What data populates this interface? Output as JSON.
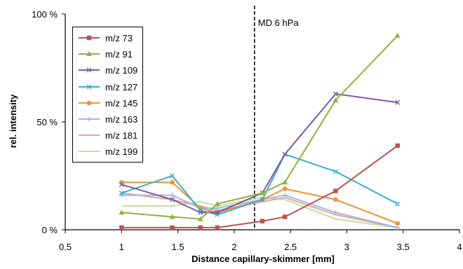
{
  "chart_data": {
    "type": "line",
    "xlabel": "Distance capillary-skimmer [mm]",
    "ylabel": "rel. intensity",
    "xlim": [
      0.5,
      4
    ],
    "ylim": [
      0,
      100
    ],
    "x_ticks": [
      "0.5",
      "1",
      "1.5",
      "2",
      "2.5",
      "3",
      "3.5",
      "4"
    ],
    "y_ticks": [
      "0 %",
      "50 %",
      "100 %"
    ],
    "grid": false,
    "legend_position": "top-left",
    "annotation": {
      "x": 2.18,
      "text": "MD 6 hPa"
    },
    "series": [
      {
        "name": "m/z 73",
        "color": "#c0504d",
        "marker": "square",
        "x": [
          1,
          1.45,
          1.7,
          1.85,
          2.25,
          2.45,
          2.9,
          3.45
        ],
        "y": [
          1,
          1,
          1,
          1,
          4,
          6,
          18,
          39
        ]
      },
      {
        "name": "m/z 91",
        "color": "#8fb43a",
        "marker": "triangle",
        "x": [
          1,
          1.45,
          1.7,
          1.85,
          2.25,
          2.45,
          2.9,
          3.45
        ],
        "y": [
          8,
          6,
          5,
          12,
          17,
          22,
          60,
          90
        ]
      },
      {
        "name": "m/z 109",
        "color": "#7b5ba6",
        "marker": "x",
        "x": [
          1,
          1.45,
          1.7,
          1.85,
          2.25,
          2.45,
          2.9,
          3.45
        ],
        "y": [
          21,
          14,
          8,
          8,
          17,
          35,
          63,
          59
        ]
      },
      {
        "name": "m/z 127",
        "color": "#3aaecb",
        "marker": "x",
        "x": [
          1,
          1.45,
          1.7,
          1.85,
          2.25,
          2.45,
          2.9,
          3.45
        ],
        "y": [
          17,
          25,
          9,
          7,
          14,
          35,
          27,
          12
        ]
      },
      {
        "name": "m/z 145",
        "color": "#f0913a",
        "marker": "circle",
        "x": [
          1,
          1.45,
          1.7,
          1.85,
          2.25,
          2.45,
          2.9,
          3.45
        ],
        "y": [
          22,
          22,
          10,
          8,
          14,
          19,
          14,
          3
        ]
      },
      {
        "name": "m/z 163",
        "color": "#9fb7e0",
        "marker": "plus",
        "x": [
          1,
          1.45,
          1.7,
          1.85,
          2.25,
          2.45,
          2.9,
          3.45
        ],
        "y": [
          16,
          16,
          10,
          10,
          14,
          16,
          8,
          1
        ]
      },
      {
        "name": "m/z 181",
        "color": "#e8a0a0",
        "marker": "none",
        "x": [
          1,
          1.45,
          1.7,
          1.85,
          2.25,
          2.45,
          2.9,
          3.45
        ],
        "y": [
          17,
          14,
          11,
          9,
          13,
          15,
          7,
          1
        ]
      },
      {
        "name": "m/z 199",
        "color": "#c6dd9c",
        "marker": "none",
        "x": [
          1,
          1.45,
          1.7,
          1.85,
          2.25,
          2.45,
          2.9,
          3.45
        ],
        "y": [
          11,
          11,
          13,
          11,
          15,
          14,
          5,
          1
        ]
      }
    ]
  }
}
